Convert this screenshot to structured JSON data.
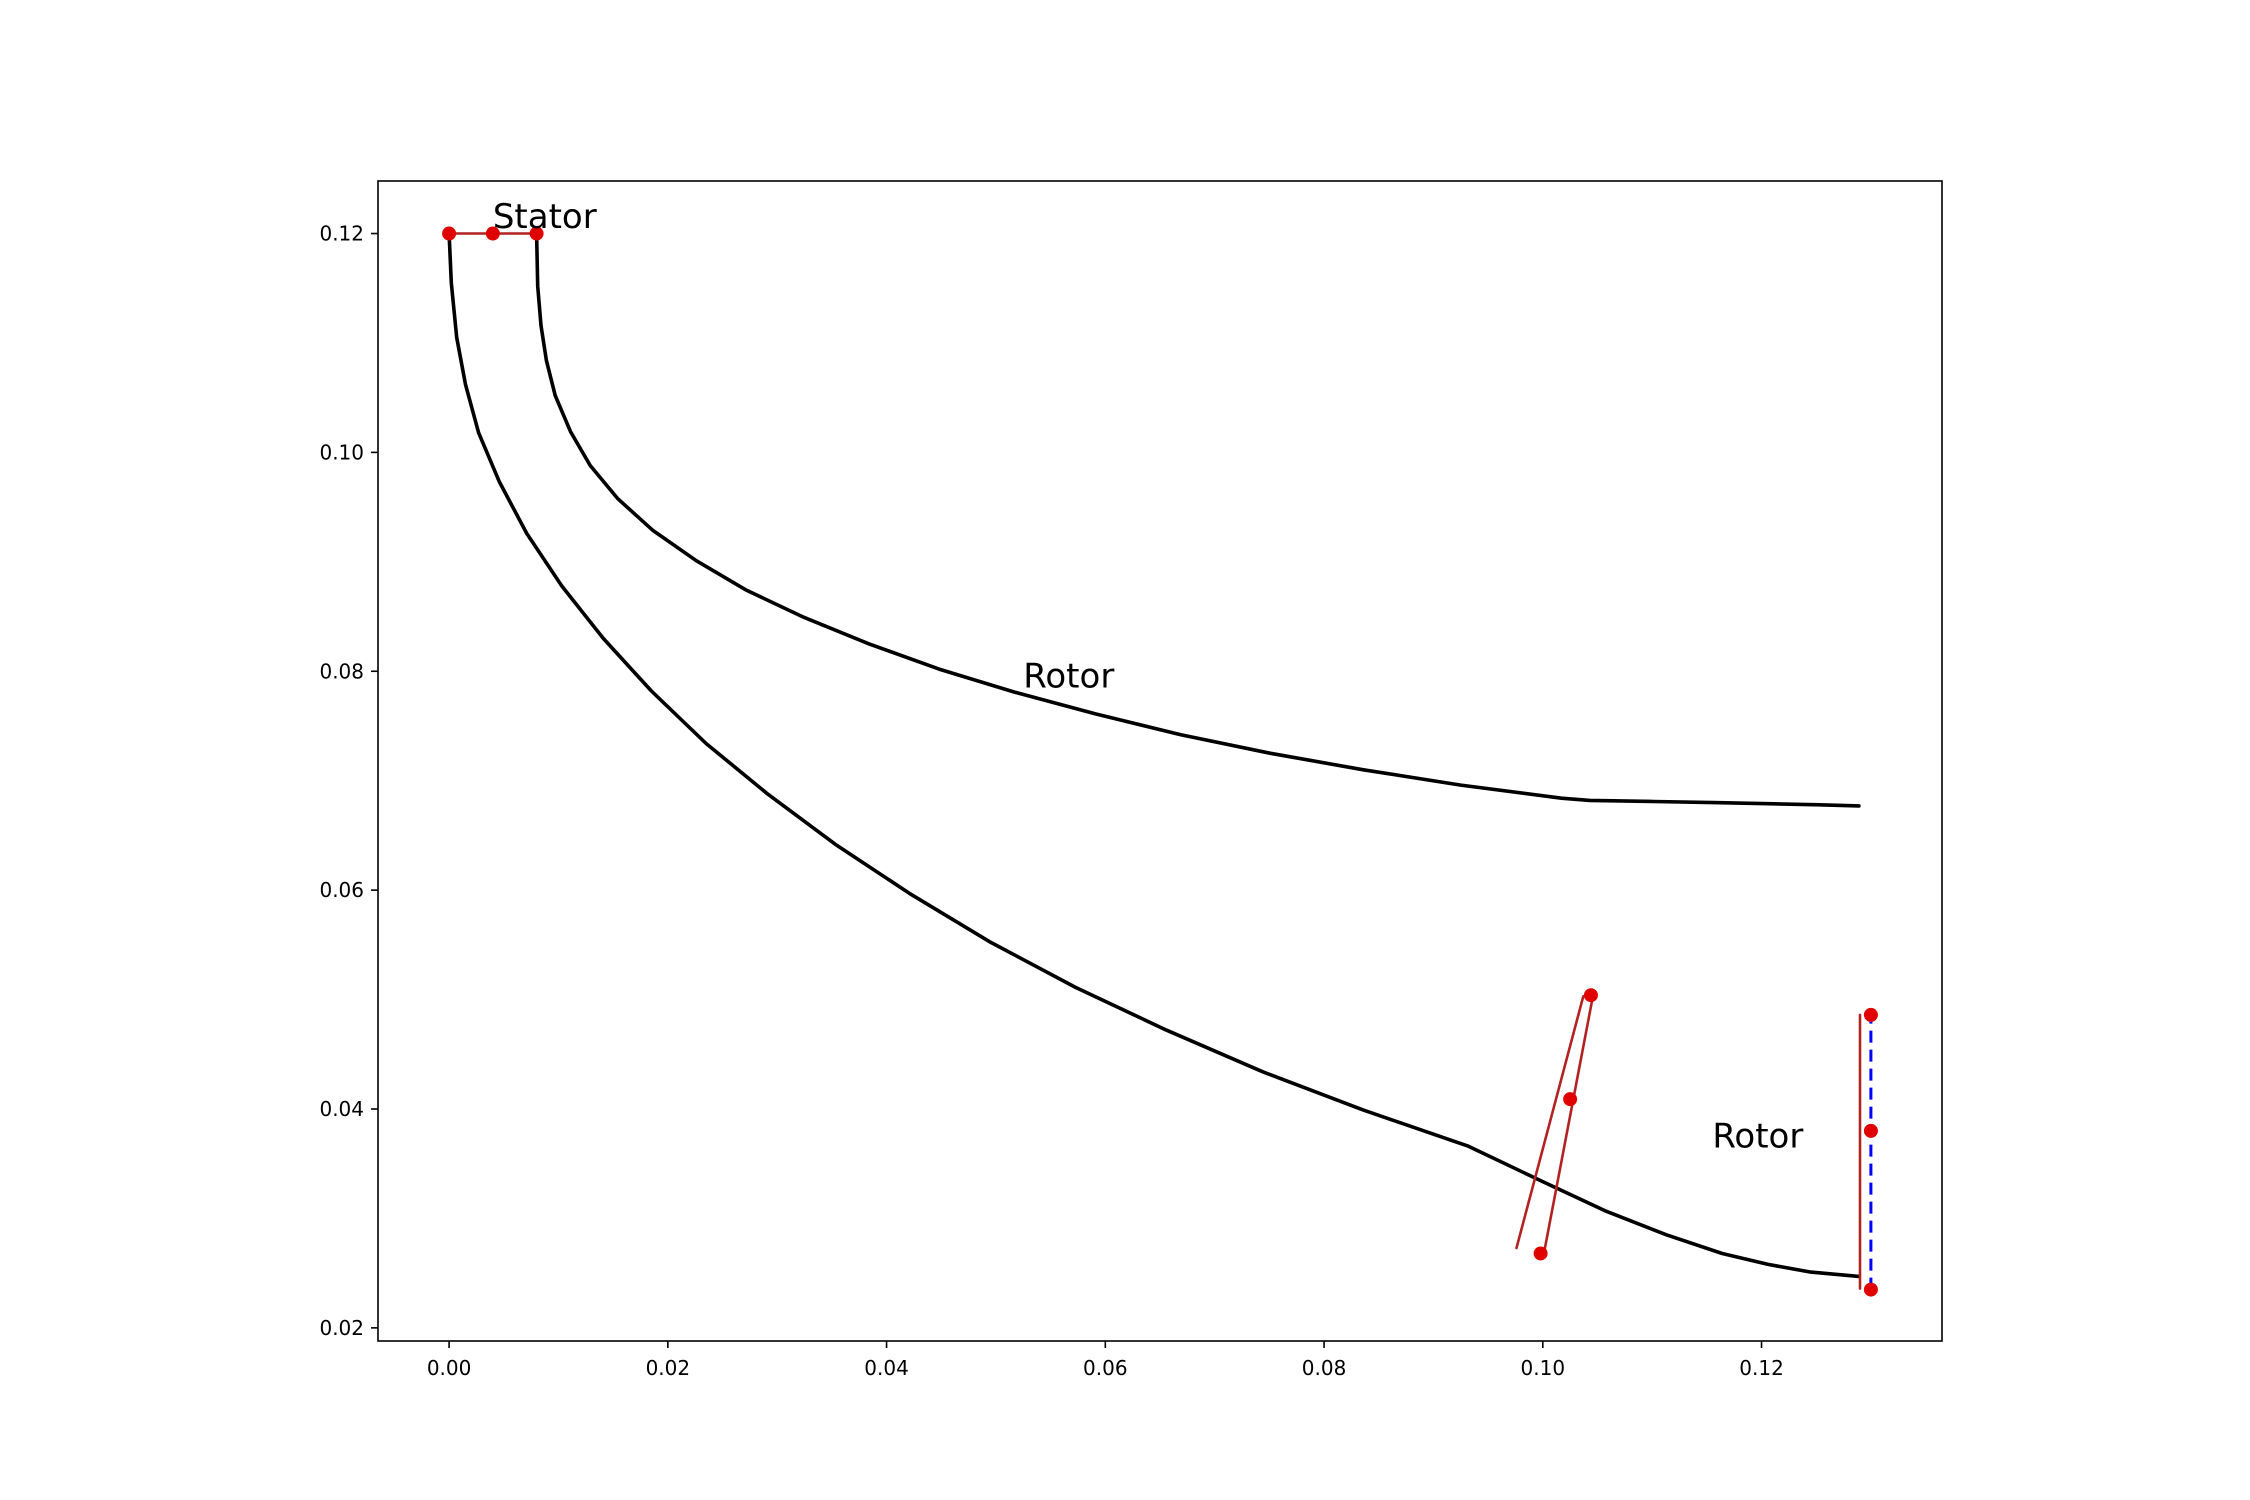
{
  "chart_data": {
    "type": "line",
    "title": "",
    "xlabel": "",
    "ylabel": "",
    "xlim": [
      -0.0065,
      0.1365
    ],
    "ylim": [
      0.0188,
      0.1248
    ],
    "grid": false,
    "x_ticks": [
      "0.00",
      "0.02",
      "0.04",
      "0.06",
      "0.08",
      "0.10",
      "0.12"
    ],
    "y_ticks": [
      "0.02",
      "0.04",
      "0.06",
      "0.08",
      "0.10",
      "0.12"
    ],
    "x_tick_values": [
      0.0,
      0.02,
      0.04,
      0.06,
      0.08,
      0.1,
      0.12
    ],
    "y_tick_values": [
      0.02,
      0.04,
      0.06,
      0.08,
      0.1,
      0.12
    ],
    "annotations": [
      {
        "text": "Stator",
        "x": 0.004,
        "y": 0.1205
      },
      {
        "text": "Rotor",
        "x": 0.0525,
        "y": 0.0785
      },
      {
        "text": "Rotor",
        "x": 0.1155,
        "y": 0.0365
      }
    ],
    "series": [
      {
        "role": "hub",
        "color": "#000000",
        "style": "solid",
        "x": [
          0.0,
          0.0002,
          0.0007,
          0.0015,
          0.0027,
          0.0046,
          0.0071,
          0.0103,
          0.0141,
          0.0185,
          0.0235,
          0.0291,
          0.0353,
          0.0421,
          0.0494,
          0.0573,
          0.0656,
          0.0744,
          0.0836,
          0.0932,
          0.0997,
          0.1057,
          0.1113,
          0.1164,
          0.1206,
          0.1245,
          0.1289
        ],
        "y": [
          0.12,
          0.1155,
          0.1105,
          0.1062,
          0.1018,
          0.0973,
          0.0926,
          0.0878,
          0.083,
          0.0782,
          0.0734,
          0.0688,
          0.0642,
          0.0597,
          0.0553,
          0.0511,
          0.0472,
          0.0434,
          0.0399,
          0.0366,
          0.0335,
          0.0307,
          0.0285,
          0.0268,
          0.0258,
          0.0251,
          0.0247
        ]
      },
      {
        "role": "shroud",
        "color": "#000000",
        "style": "solid",
        "x": [
          0.008,
          0.0081,
          0.0084,
          0.0089,
          0.0097,
          0.0111,
          0.0129,
          0.0154,
          0.0186,
          0.0226,
          0.0272,
          0.0325,
          0.0384,
          0.0448,
          0.0517,
          0.0591,
          0.0669,
          0.0751,
          0.0836,
          0.0925,
          0.1017,
          0.1043,
          0.1101,
          0.1156,
          0.1206,
          0.1253,
          0.1289
        ],
        "y": [
          0.12,
          0.1152,
          0.1116,
          0.1084,
          0.1052,
          0.1019,
          0.0988,
          0.0958,
          0.0929,
          0.0901,
          0.0874,
          0.0849,
          0.0825,
          0.0802,
          0.0781,
          0.0761,
          0.0742,
          0.0725,
          0.071,
          0.0696,
          0.0684,
          0.0682,
          0.0681,
          0.068,
          0.0679,
          0.0678,
          0.0677
        ]
      },
      {
        "role": "stator-inlet",
        "color": "#b22222",
        "style": "solid",
        "x": [
          0.0,
          0.008
        ],
        "y": [
          0.12,
          0.12
        ]
      },
      {
        "role": "interface-line-1",
        "color": "#b22222",
        "style": "solid",
        "x": [
          0.0976,
          0.1037
        ],
        "y": [
          0.0273,
          0.0503
        ]
      },
      {
        "role": "interface-line-2",
        "color": "#b22222",
        "style": "solid",
        "x": [
          0.1001,
          0.1046
        ],
        "y": [
          0.0268,
          0.0504
        ]
      },
      {
        "role": "outlet-inner",
        "color": "#b22222",
        "style": "solid",
        "x": [
          0.129,
          0.129
        ],
        "y": [
          0.0236,
          0.0486
        ]
      },
      {
        "role": "outlet-boundary",
        "color": "#0000ff",
        "style": "dashed",
        "x": [
          0.13,
          0.13
        ],
        "y": [
          0.0235,
          0.0486
        ]
      },
      {
        "role": "control-points",
        "color": "#e00000",
        "style": "markers",
        "x": [
          0.0,
          0.004,
          0.008,
          0.1044,
          0.1025,
          0.0998,
          0.13,
          0.13,
          0.13
        ],
        "y": [
          0.12,
          0.12,
          0.12,
          0.0504,
          0.0409,
          0.0268,
          0.0486,
          0.038,
          0.0235
        ]
      }
    ]
  }
}
